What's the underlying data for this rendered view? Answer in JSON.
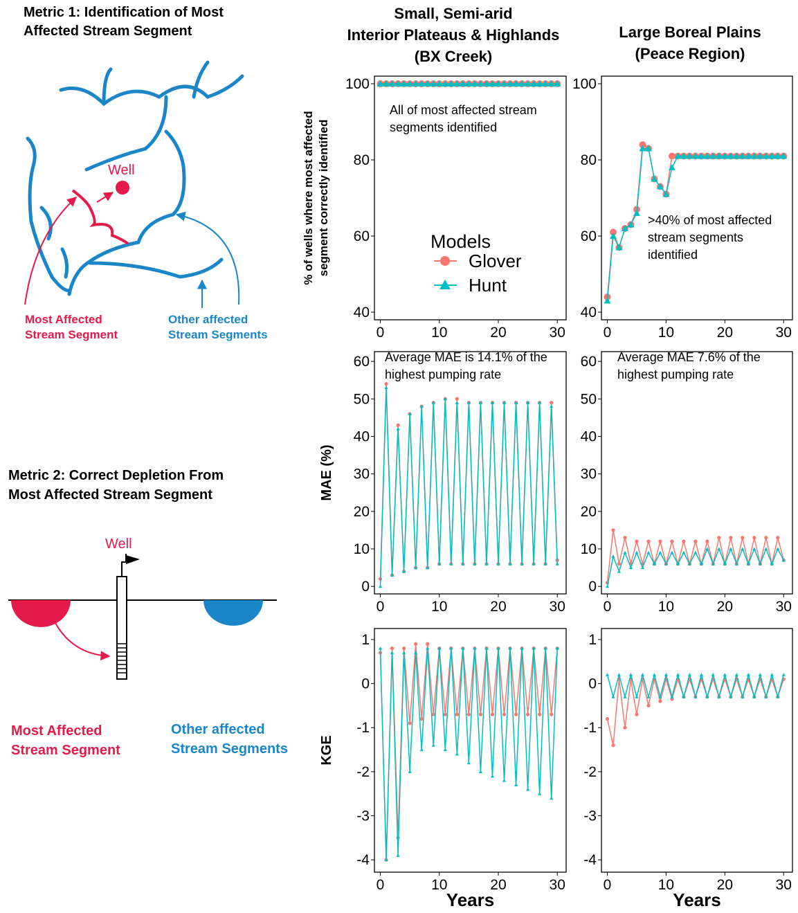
{
  "diagram": {
    "metric1": {
      "title_lines": [
        "Metric 1: Identification of Most",
        "Affected Stream Segment"
      ],
      "well": "Well",
      "most_affected": [
        "Most Affected",
        "Stream Segment"
      ],
      "other_affected": [
        "Other affected",
        "Stream Segments"
      ]
    },
    "metric2": {
      "title_lines": [
        "Metric 2: Correct Depletion From",
        "Most Affected Stream Segment"
      ],
      "well": "Well",
      "most_affected": [
        "Most Affected",
        "Stream Segment"
      ],
      "other_affected": [
        "Other affected",
        "Stream Segments"
      ]
    }
  },
  "column_titles": [
    [
      "Small, Semi-arid",
      "Interior Plateaus & Highlands",
      "(BX Creek)"
    ],
    [
      "Large Boreal Plains",
      "(Peace Region)"
    ]
  ],
  "chart_data": [
    {
      "type": "line",
      "ylabel": [
        "% of wells where most affected",
        "segment correctly identified"
      ],
      "legend_title": "Models",
      "legend": true,
      "annotation": [
        "All of most affected stream",
        "segments identified"
      ],
      "x": [
        0,
        1,
        2,
        3,
        4,
        5,
        6,
        7,
        8,
        9,
        10,
        11,
        12,
        13,
        14,
        15,
        16,
        17,
        18,
        19,
        20,
        21,
        22,
        23,
        24,
        25,
        26,
        27,
        28,
        29,
        30
      ],
      "series": [
        {
          "name": "Glover",
          "color": "#f8766d",
          "marker": "circle",
          "values": [
            100,
            100,
            100,
            100,
            100,
            100,
            100,
            100,
            100,
            100,
            100,
            100,
            100,
            100,
            100,
            100,
            100,
            100,
            100,
            100,
            100,
            100,
            100,
            100,
            100,
            100,
            100,
            100,
            100,
            100,
            100
          ]
        },
        {
          "name": "Hunt",
          "color": "#00bfc4",
          "marker": "triangle",
          "values": [
            100,
            100,
            100,
            100,
            100,
            100,
            100,
            100,
            100,
            100,
            100,
            100,
            100,
            100,
            100,
            100,
            100,
            100,
            100,
            100,
            100,
            100,
            100,
            100,
            100,
            100,
            100,
            100,
            100,
            100,
            100
          ]
        }
      ],
      "xlim": [
        -1,
        31.5
      ],
      "xticks": [
        0,
        10,
        20,
        30
      ],
      "ylim": [
        38,
        102
      ],
      "yticks": [
        40,
        60,
        80,
        100
      ]
    },
    {
      "type": "line",
      "annotation": [
        ">40% of most affected",
        "stream segments",
        "identified"
      ],
      "x": [
        0,
        1,
        2,
        3,
        4,
        5,
        6,
        7,
        8,
        9,
        10,
        11,
        12,
        13,
        14,
        15,
        16,
        17,
        18,
        19,
        20,
        21,
        22,
        23,
        24,
        25,
        26,
        27,
        28,
        29,
        30
      ],
      "series": [
        {
          "name": "Glover",
          "color": "#f8766d",
          "marker": "circle",
          "values": [
            44,
            61,
            57,
            62,
            63,
            67,
            84,
            83,
            75,
            73,
            71,
            81,
            81,
            81,
            81,
            81,
            81,
            81,
            81,
            81,
            81,
            81,
            81,
            81,
            81,
            81,
            81,
            81,
            81,
            81,
            81
          ]
        },
        {
          "name": "Hunt",
          "color": "#00bfc4",
          "marker": "triangle",
          "values": [
            43,
            60,
            57,
            62,
            63,
            66,
            83,
            83,
            75,
            73,
            71,
            78,
            81,
            81,
            81,
            81,
            81,
            81,
            81,
            81,
            81,
            81,
            81,
            81,
            81,
            81,
            81,
            81,
            81,
            81,
            81
          ]
        }
      ],
      "xlim": [
        -1,
        31.5
      ],
      "xticks": [
        0,
        10,
        20,
        30
      ],
      "ylim": [
        38,
        102
      ],
      "yticks": [
        40,
        60,
        80,
        100
      ]
    },
    {
      "type": "line",
      "ylabel": [
        "MAE (%)"
      ],
      "annotation": [
        "Average MAE is 14.1% of the",
        "highest pumping rate"
      ],
      "x": [
        0,
        1,
        2,
        3,
        4,
        5,
        6,
        7,
        8,
        9,
        10,
        11,
        12,
        13,
        14,
        15,
        16,
        17,
        18,
        19,
        20,
        21,
        22,
        23,
        24,
        25,
        26,
        27,
        28,
        29,
        30
      ],
      "series": [
        {
          "name": "Glover",
          "color": "#f8766d",
          "marker": "circle",
          "values": [
            2,
            54,
            3,
            43,
            4,
            46,
            5,
            48,
            5,
            49,
            6,
            50,
            6,
            50,
            6,
            49,
            6,
            49,
            6,
            49,
            6,
            49,
            6,
            49,
            6,
            49,
            6,
            49,
            6,
            49,
            7
          ]
        },
        {
          "name": "Hunt",
          "color": "#00bfc4",
          "marker": "triangle",
          "values": [
            0,
            53,
            3,
            42,
            4,
            46,
            5,
            48,
            5,
            49,
            6,
            50,
            6,
            49,
            6,
            49,
            6,
            49,
            6,
            49,
            6,
            49,
            6,
            49,
            6,
            49,
            6,
            49,
            6,
            48,
            6
          ]
        }
      ],
      "xlim": [
        -1,
        31.5
      ],
      "xticks": [
        0,
        10,
        20,
        30
      ],
      "ylim": [
        -2,
        62.6
      ],
      "yticks": [
        0,
        10,
        20,
        30,
        40,
        50,
        60
      ]
    },
    {
      "type": "line",
      "annotation": [
        "Average MAE 7.6% of the",
        "highest pumping rate"
      ],
      "x": [
        0,
        1,
        2,
        3,
        4,
        5,
        6,
        7,
        8,
        9,
        10,
        11,
        12,
        13,
        14,
        15,
        16,
        17,
        18,
        19,
        20,
        21,
        22,
        23,
        24,
        25,
        26,
        27,
        28,
        29,
        30
      ],
      "series": [
        {
          "name": "Glover",
          "color": "#f8766d",
          "marker": "circle",
          "values": [
            1,
            15,
            6,
            13,
            6,
            12,
            6,
            12,
            6,
            12,
            6,
            12,
            6,
            12,
            6,
            12,
            6,
            12,
            6,
            13,
            6,
            13,
            6,
            13,
            6,
            13,
            6,
            13,
            6,
            13,
            7
          ]
        },
        {
          "name": "Hunt",
          "color": "#00bfc4",
          "marker": "triangle",
          "values": [
            0,
            8,
            4,
            9,
            5,
            9,
            5,
            9,
            6,
            9,
            6,
            9,
            6,
            9,
            6,
            9,
            6,
            10,
            6,
            10,
            6,
            10,
            6,
            10,
            6,
            10,
            6,
            10,
            6,
            10,
            7
          ]
        }
      ],
      "xlim": [
        -1,
        31.5
      ],
      "xticks": [
        0,
        10,
        20,
        30
      ],
      "ylim": [
        -2,
        62.6
      ],
      "yticks": [
        0,
        10,
        20,
        30,
        40,
        50,
        60
      ]
    },
    {
      "type": "line",
      "ylabel": [
        "KGE"
      ],
      "xlabel": "Years",
      "x": [
        0,
        1,
        2,
        3,
        4,
        5,
        6,
        7,
        8,
        9,
        10,
        11,
        12,
        13,
        14,
        15,
        16,
        17,
        18,
        19,
        20,
        21,
        22,
        23,
        24,
        25,
        26,
        27,
        28,
        29,
        30
      ],
      "series": [
        {
          "name": "Glover",
          "color": "#f8766d",
          "marker": "circle",
          "values": [
            0.7,
            -4,
            0.8,
            -3.5,
            0.8,
            -0.9,
            0.9,
            -0.8,
            0.9,
            -0.7,
            0.8,
            -0.7,
            0.8,
            -0.7,
            0.8,
            -0.7,
            0.8,
            -0.7,
            0.8,
            -0.7,
            0.8,
            -0.7,
            0.8,
            -0.7,
            0.8,
            -0.7,
            0.8,
            -0.7,
            0.8,
            -0.7,
            0.8
          ]
        },
        {
          "name": "Hunt",
          "color": "#00bfc4",
          "marker": "triangle",
          "values": [
            0.8,
            -4,
            0.7,
            -3.9,
            0.7,
            -2,
            0.7,
            -1.5,
            0.8,
            -1.4,
            0.8,
            -1.5,
            0.8,
            -1.6,
            0.8,
            -1.8,
            0.8,
            -2,
            0.8,
            -2.1,
            0.8,
            -2.2,
            0.8,
            -2.3,
            0.8,
            -2.4,
            0.8,
            -2.5,
            0.8,
            -2.6,
            0.8
          ]
        }
      ],
      "xlim": [
        -1,
        31.5
      ],
      "xticks": [
        0,
        10,
        20,
        30
      ],
      "ylim": [
        -4.28,
        1.25
      ],
      "yticks": [
        -4,
        -3,
        -2,
        -1,
        0,
        1
      ]
    },
    {
      "type": "line",
      "xlabel": "Years",
      "x": [
        0,
        1,
        2,
        3,
        4,
        5,
        6,
        7,
        8,
        9,
        10,
        11,
        12,
        13,
        14,
        15,
        16,
        17,
        18,
        19,
        20,
        21,
        22,
        23,
        24,
        25,
        26,
        27,
        28,
        29,
        30
      ],
      "series": [
        {
          "name": "Glover",
          "color": "#f8766d",
          "marker": "circle",
          "values": [
            -0.8,
            -1.4,
            0.1,
            -1,
            0.1,
            -0.7,
            0.1,
            -0.5,
            0.1,
            -0.4,
            0.1,
            -0.35,
            0.1,
            -0.3,
            0.1,
            -0.3,
            0.1,
            -0.3,
            0.1,
            -0.3,
            0.1,
            -0.3,
            0.1,
            -0.3,
            0.1,
            -0.3,
            0.1,
            -0.3,
            0.1,
            -0.3,
            0.1
          ]
        },
        {
          "name": "Hunt",
          "color": "#00bfc4",
          "marker": "triangle",
          "values": [
            0.2,
            -0.3,
            0.2,
            -0.3,
            0.2,
            -0.3,
            0.2,
            -0.3,
            0.2,
            -0.3,
            0.2,
            -0.3,
            0.2,
            -0.3,
            0.2,
            -0.3,
            0.2,
            -0.3,
            0.2,
            -0.3,
            0.2,
            -0.3,
            0.2,
            -0.3,
            0.2,
            -0.3,
            0.2,
            -0.3,
            0.2,
            -0.3,
            0.2
          ]
        }
      ],
      "xlim": [
        -1,
        31.5
      ],
      "xticks": [
        0,
        10,
        20,
        30
      ],
      "ylim": [
        -4.28,
        1.25
      ],
      "yticks": [
        -4,
        -3,
        -2,
        -1,
        0,
        1
      ]
    }
  ]
}
